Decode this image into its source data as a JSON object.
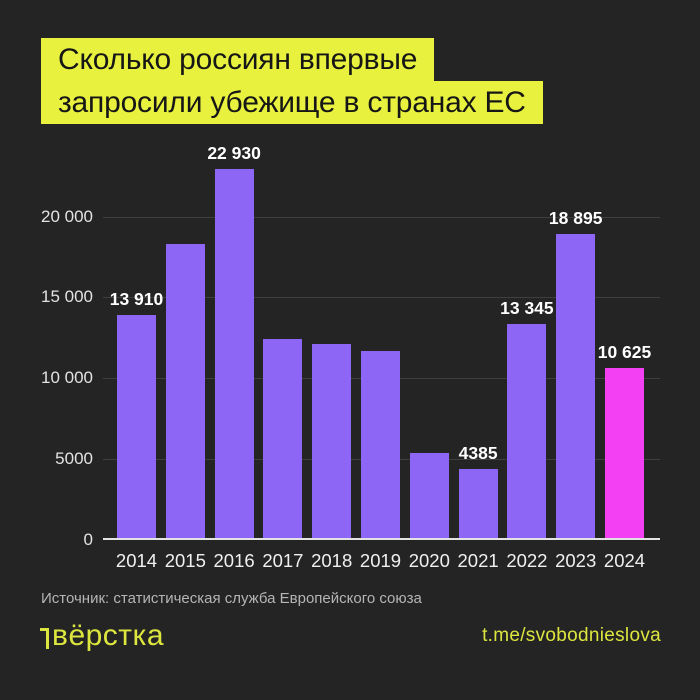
{
  "title": {
    "line1": "Сколько россиян впервые",
    "line2": "запросили убежище в странах ЕС"
  },
  "chart_data": {
    "type": "bar",
    "title": "Сколько россиян впервые запросили убежище в странах ЕС",
    "xlabel": "",
    "ylabel": "",
    "ylim": [
      0,
      24000
    ],
    "grid": true,
    "legend": "none",
    "yticks": [
      {
        "value": 0,
        "label": "0"
      },
      {
        "value": 5000,
        "label": "5000"
      },
      {
        "value": 10000,
        "label": "10 000"
      },
      {
        "value": 15000,
        "label": "15 000"
      },
      {
        "value": 20000,
        "label": "20 000"
      }
    ],
    "bars": [
      {
        "year": "2014",
        "value": 13910,
        "label": "13 910",
        "highlight": false
      },
      {
        "year": "2015",
        "value": 18300,
        "label": null,
        "highlight": false
      },
      {
        "year": "2016",
        "value": 22930,
        "label": "22 930",
        "highlight": false
      },
      {
        "year": "2017",
        "value": 12460,
        "label": null,
        "highlight": false
      },
      {
        "year": "2018",
        "value": 12100,
        "label": null,
        "highlight": false
      },
      {
        "year": "2019",
        "value": 11700,
        "label": null,
        "highlight": false
      },
      {
        "year": "2020",
        "value": 5400,
        "label": null,
        "highlight": false
      },
      {
        "year": "2021",
        "value": 4385,
        "label": "4385",
        "highlight": false
      },
      {
        "year": "2022",
        "value": 13345,
        "label": "13 345",
        "highlight": false
      },
      {
        "year": "2023",
        "value": 18895,
        "label": "18 895",
        "highlight": false
      },
      {
        "year": "2024",
        "value": 10625,
        "label": "10 625",
        "highlight": true
      }
    ]
  },
  "footer": {
    "source": "Источник: статистическая служба Европейского союза",
    "logo": "вёрстка",
    "telegram": "t.me/svobodnieslova"
  },
  "colors": {
    "background": "#242424",
    "accent_yellow": "#e7f13e",
    "footer_yellow": "#dce63f",
    "bar_purple": "#8e66f5",
    "bar_magenta": "#f340f3",
    "grid": "#3f3f3f",
    "baseline": "#e3e3e3",
    "title_text": "#161616",
    "axis_text": "#e3e3e3",
    "value_text": "#ffffff",
    "source_text": "#b5b5b5"
  }
}
